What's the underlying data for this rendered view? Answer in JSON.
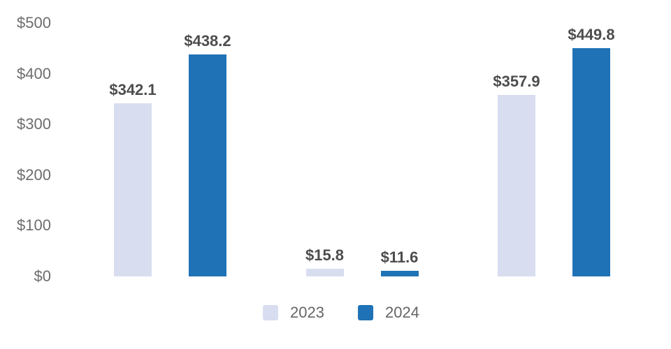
{
  "chart_data": {
    "type": "bar",
    "title": "",
    "categories": [
      "",
      "",
      ""
    ],
    "series": [
      {
        "name": "2023",
        "color": "#d8def0",
        "values": [
          342.1,
          15.8,
          357.9
        ],
        "labels": [
          "$342.1",
          "$15.8",
          "$357.9"
        ]
      },
      {
        "name": "2024",
        "color": "#1f72b6",
        "values": [
          438.2,
          11.6,
          449.8
        ],
        "labels": [
          "$438.2",
          "$11.6",
          "$449.8"
        ]
      }
    ],
    "y_axis": {
      "ticks": [
        {
          "value": 0,
          "label": "$0"
        },
        {
          "value": 100,
          "label": "$100"
        },
        {
          "value": 200,
          "label": "$200"
        },
        {
          "value": 300,
          "label": "$300"
        },
        {
          "value": 400,
          "label": "$400"
        },
        {
          "value": 500,
          "label": "$500"
        }
      ]
    },
    "ylim": [
      0,
      500
    ],
    "grid": false,
    "legend_position": "bottom",
    "value_prefix": "$"
  },
  "legend": {
    "items": [
      {
        "label": "2023",
        "color": "#d8def0"
      },
      {
        "label": "2024",
        "color": "#1f72b6"
      }
    ]
  },
  "colors": {
    "background": "#ffffff",
    "axis_text": "#6d6d6d",
    "value_text": "#4d4d4d",
    "legend_text": "#666666"
  }
}
